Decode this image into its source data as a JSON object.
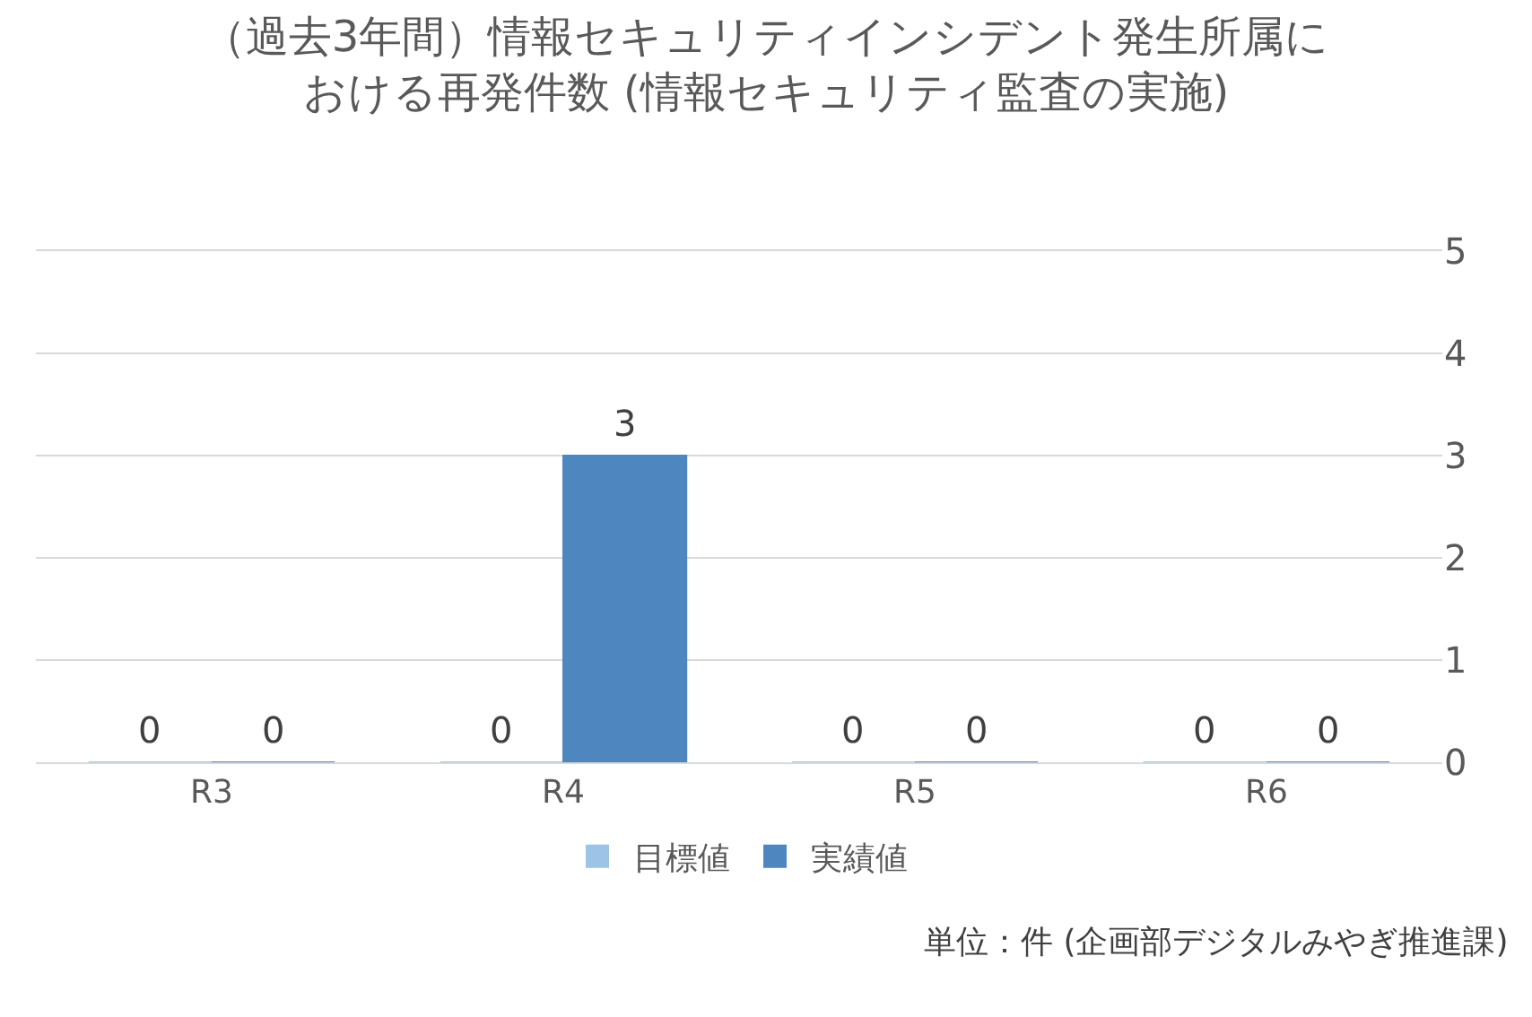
{
  "chart_data": {
    "type": "bar",
    "title": "（過去3年間）情報セキュリティインシデント発生所属における再発件数 (情報セキュリティ監査の実施)",
    "categories": [
      "R3",
      "R4",
      "R5",
      "R6"
    ],
    "series": [
      {
        "name": "目標値",
        "color": "#9dc3e6",
        "values": [
          0,
          0,
          0,
          0
        ]
      },
      {
        "name": "実績値",
        "color": "#4e87bf",
        "values": [
          0,
          3,
          0,
          0
        ]
      }
    ],
    "ylim": [
      0,
      5
    ],
    "yticks": [
      0,
      1,
      2,
      3,
      4,
      5
    ],
    "grid": "y",
    "legend": "bottom",
    "data_labels": true,
    "annotations": [
      "単位：件 (企画部デジタルみやぎ推進課)"
    ]
  }
}
